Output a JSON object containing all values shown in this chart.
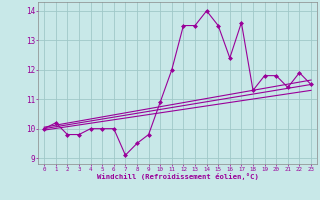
{
  "xlabel": "Windchill (Refroidissement éolien,°C)",
  "bg_color": "#c8e8e8",
  "grid_color": "#a0c8c8",
  "line_color": "#990099",
  "x_data": [
    0,
    1,
    2,
    3,
    4,
    5,
    6,
    7,
    8,
    9,
    10,
    11,
    12,
    13,
    14,
    15,
    16,
    17,
    18,
    19,
    20,
    21,
    22,
    23
  ],
  "y_data": [
    10.0,
    10.2,
    9.8,
    9.8,
    10.0,
    10.0,
    10.0,
    9.1,
    9.5,
    9.8,
    10.9,
    12.0,
    13.5,
    13.5,
    14.0,
    13.5,
    12.4,
    13.6,
    11.3,
    11.8,
    11.8,
    11.4,
    11.9,
    11.5
  ],
  "trend1_x": [
    0,
    23
  ],
  "trend1_y": [
    10.0,
    11.5
  ],
  "trend2_x": [
    0,
    23
  ],
  "trend2_y": [
    10.05,
    11.65
  ],
  "trend3_x": [
    0,
    23
  ],
  "trend3_y": [
    9.95,
    11.3
  ],
  "xlim": [
    -0.5,
    23.5
  ],
  "ylim": [
    8.8,
    14.3
  ],
  "yticks": [
    9,
    10,
    11,
    12,
    13,
    14
  ],
  "xticks": [
    0,
    1,
    2,
    3,
    4,
    5,
    6,
    7,
    8,
    9,
    10,
    11,
    12,
    13,
    14,
    15,
    16,
    17,
    18,
    19,
    20,
    21,
    22,
    23
  ],
  "marker": "D",
  "markersize": 2.0,
  "linewidth": 0.8
}
